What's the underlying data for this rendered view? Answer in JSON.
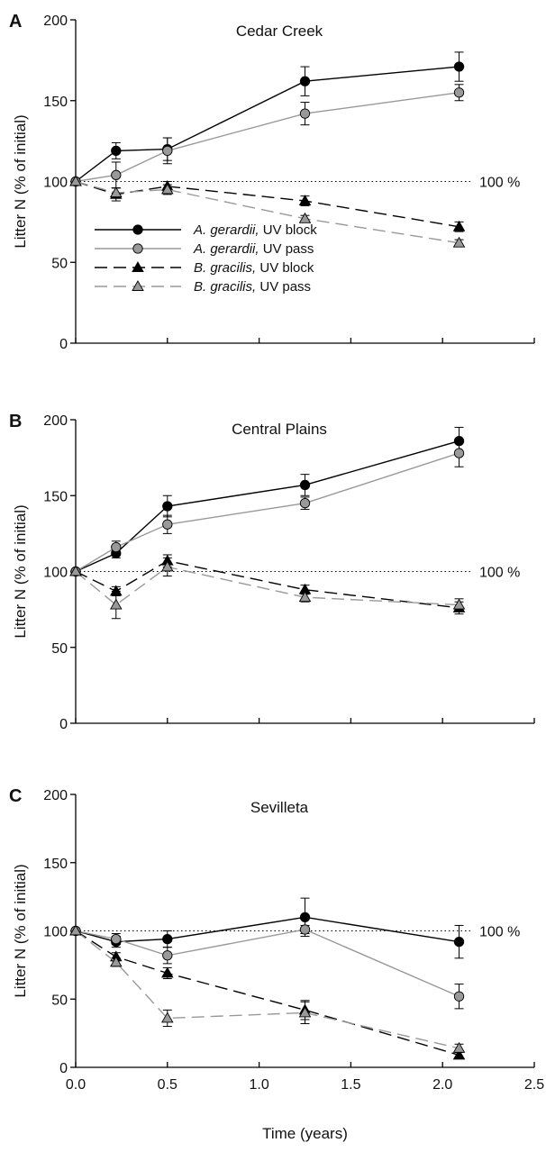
{
  "chart_data": {
    "type": "line",
    "x_axis": {
      "label": "Time (years)",
      "lim": [
        0,
        2.5
      ],
      "ticks": [
        0,
        0.5,
        1,
        1.5,
        2,
        2.5
      ],
      "tick_labels": [
        "0.0",
        "0.5",
        "1.0",
        "1.5",
        "2.0",
        "2.5"
      ]
    },
    "y_axis": {
      "label": "Litter N (% of initial)",
      "lim": [
        0,
        200
      ],
      "ticks": [
        0,
        50,
        100,
        150,
        200
      ],
      "tick_labels": [
        "0",
        "50",
        "100",
        "150",
        "200"
      ]
    },
    "reference_line": {
      "y": 100,
      "label": "100 %"
    },
    "series_styles": [
      {
        "name": "A. gerardii, UV block",
        "species": "A. gerardii,",
        "treatment": " UV block",
        "marker": "circle",
        "marker_color": "#000000",
        "line_color": "#000000",
        "dash": ""
      },
      {
        "name": "A. gerardii, UV pass",
        "species": "A. gerardii,",
        "treatment": " UV pass",
        "marker": "circle",
        "marker_color": "#999999",
        "line_color": "#999999",
        "dash": ""
      },
      {
        "name": "B. gracilis, UV block",
        "species": "B. gracilis,",
        "treatment": " UV block",
        "marker": "triangle",
        "marker_color": "#000000",
        "line_color": "#000000",
        "dash": "14,7"
      },
      {
        "name": "B. gracilis, UV pass",
        "species": "B. gracilis,",
        "treatment": " UV pass",
        "marker": "triangle",
        "marker_color": "#999999",
        "line_color": "#999999",
        "dash": "14,7"
      }
    ],
    "panels": [
      {
        "letter": "A",
        "title": "Cedar Creek",
        "legend": true,
        "series": [
          {
            "x": [
              0,
              0.22,
              0.5,
              1.25,
              2.09
            ],
            "y": [
              100,
              119,
              120,
              162,
              171
            ],
            "err": [
              0,
              5,
              7,
              9,
              9
            ]
          },
          {
            "x": [
              0,
              0.22,
              0.5,
              1.25,
              2.09
            ],
            "y": [
              100,
              104,
              119,
              142,
              155
            ],
            "err": [
              0,
              8,
              8,
              7,
              5
            ]
          },
          {
            "x": [
              0,
              0.22,
              0.5,
              1.25,
              2.09
            ],
            "y": [
              100,
              92,
              97,
              88,
              72
            ],
            "err": [
              0,
              4,
              3,
              3,
              3
            ]
          },
          {
            "x": [
              0,
              0.22,
              0.5,
              1.25,
              2.09
            ],
            "y": [
              100,
              93,
              95,
              77,
              62
            ],
            "err": [
              0,
              3,
              3,
              2,
              2
            ]
          }
        ]
      },
      {
        "letter": "B",
        "title": "Central Plains",
        "legend": false,
        "series": [
          {
            "x": [
              0,
              0.22,
              0.5,
              1.25,
              2.09
            ],
            "y": [
              100,
              112,
              143,
              157,
              186
            ],
            "err": [
              0,
              3,
              7,
              7,
              9
            ]
          },
          {
            "x": [
              0,
              0.22,
              0.5,
              1.25,
              2.09
            ],
            "y": [
              100,
              116,
              131,
              145,
              178
            ],
            "err": [
              0,
              4,
              6,
              4,
              9
            ]
          },
          {
            "x": [
              0,
              0.22,
              0.5,
              1.25,
              2.09
            ],
            "y": [
              100,
              87,
              107,
              88,
              76
            ],
            "err": [
              0,
              3,
              4,
              3,
              4
            ]
          },
          {
            "x": [
              0,
              0.22,
              0.5,
              1.25,
              2.09
            ],
            "y": [
              100,
              78,
              103,
              83,
              78
            ],
            "err": [
              0,
              9,
              6,
              3,
              4
            ]
          }
        ]
      },
      {
        "letter": "C",
        "title": "Sevilleta",
        "legend": false,
        "series": [
          {
            "x": [
              0,
              0.22,
              0.5,
              1.25,
              2.09
            ],
            "y": [
              100,
              92,
              94,
              110,
              92
            ],
            "err": [
              0,
              4,
              6,
              14,
              12
            ]
          },
          {
            "x": [
              0,
              0.22,
              0.5,
              1.25,
              2.09
            ],
            "y": [
              100,
              94,
              82,
              101,
              52
            ],
            "err": [
              0,
              4,
              6,
              3,
              9
            ]
          },
          {
            "x": [
              0,
              0.22,
              0.5,
              1.25,
              2.09
            ],
            "y": [
              100,
              81,
              69,
              42,
              9
            ],
            "err": [
              0,
              3,
              4,
              7,
              2
            ]
          },
          {
            "x": [
              0,
              0.22,
              0.5,
              1.25,
              2.09
            ],
            "y": [
              100,
              77,
              36,
              40,
              14
            ],
            "err": [
              0,
              3,
              6,
              8,
              3
            ]
          }
        ]
      }
    ]
  }
}
